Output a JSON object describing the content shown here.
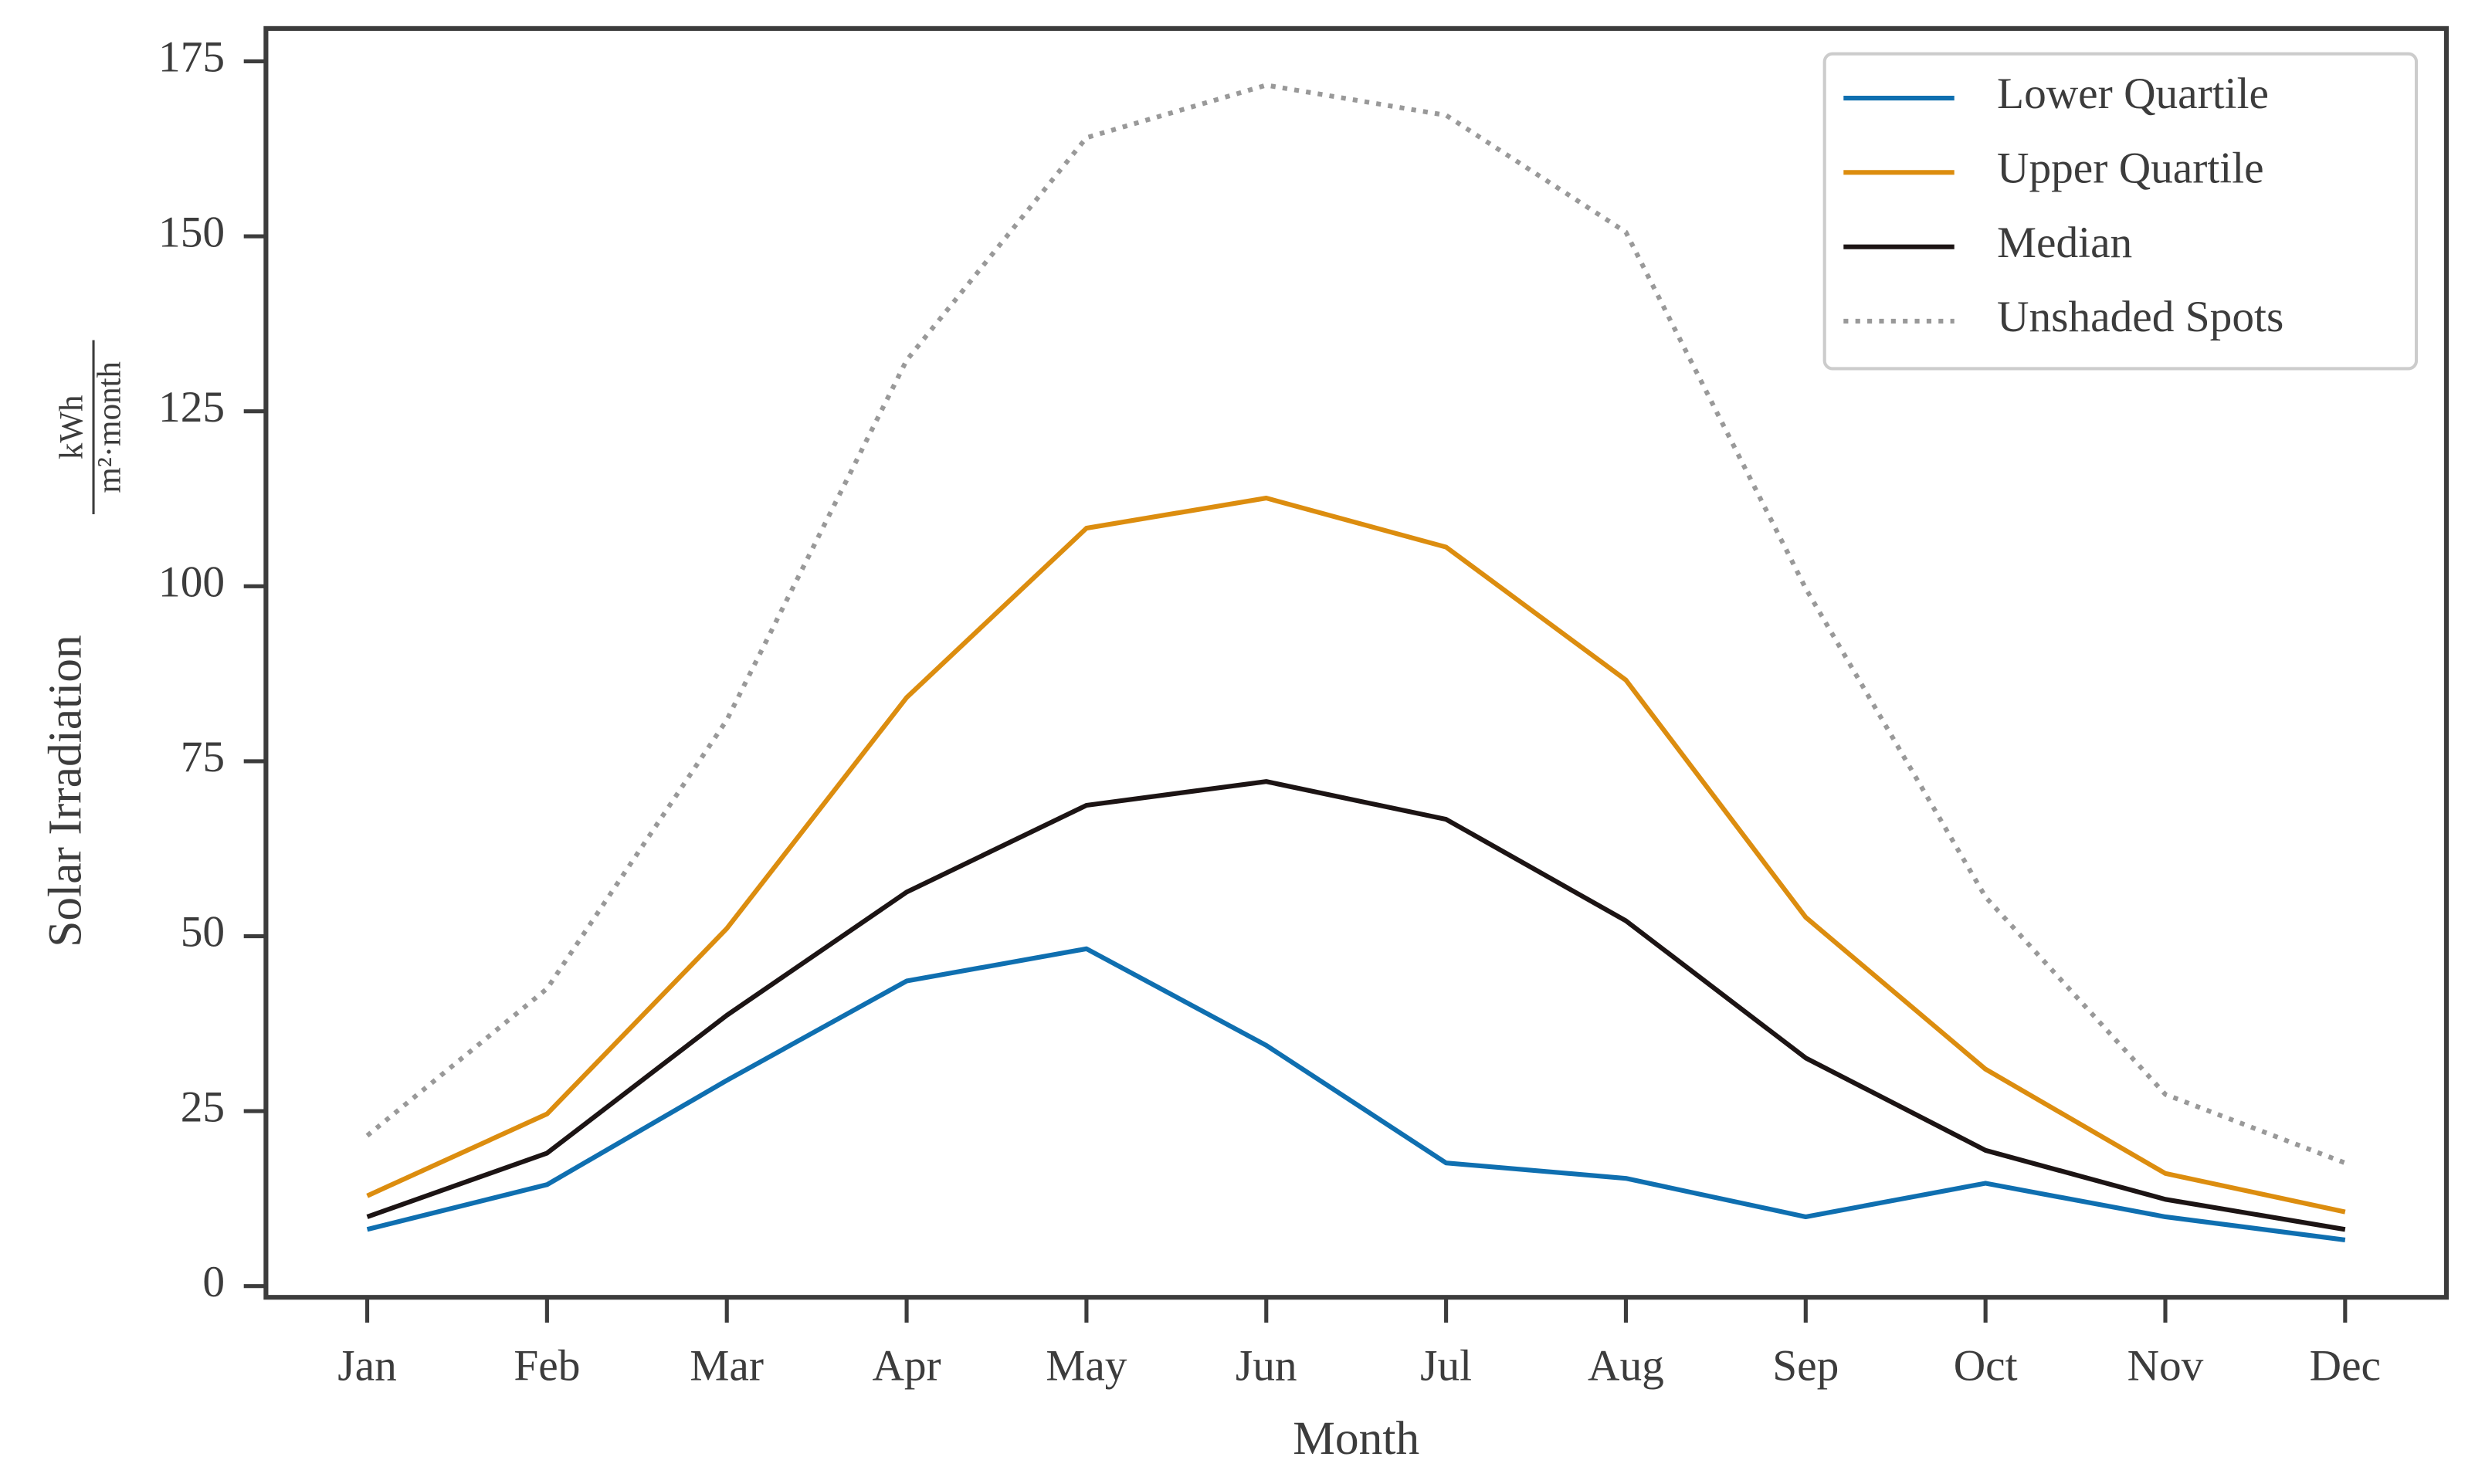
{
  "chart_data": {
    "type": "line",
    "xlabel": "Month",
    "ylabel": {
      "text": "Solar Irradiation",
      "unit_numerator": "kWh",
      "unit_denominator": "m²·month"
    },
    "categories": [
      "Jan",
      "Feb",
      "Mar",
      "Apr",
      "May",
      "Jun",
      "Jul",
      "Aug",
      "Sep",
      "Oct",
      "Nov",
      "Dec"
    ],
    "series": [
      {
        "name": "Lower Quartile",
        "color": "#0f6fb0",
        "style": "solid",
        "values": [
          8.1,
          14.5,
          29.4,
          43.6,
          48.2,
          34.4,
          17.6,
          15.4,
          9.9,
          14.7,
          9.9,
          6.6
        ]
      },
      {
        "name": "Upper Quartile",
        "color": "#dc8d0f",
        "style": "solid",
        "values": [
          12.9,
          24.6,
          51.1,
          84.1,
          108.3,
          112.6,
          105.6,
          86.6,
          52.7,
          31.0,
          16.1,
          10.6
        ]
      },
      {
        "name": "Median",
        "color": "#1c1414",
        "style": "solid",
        "values": [
          9.9,
          19.0,
          38.7,
          56.3,
          68.7,
          72.1,
          66.7,
          52.2,
          32.6,
          19.4,
          12.4,
          8.1
        ]
      },
      {
        "name": "Unshaded Spots",
        "color": "#999999",
        "style": "dotted",
        "values": [
          21.5,
          42.5,
          80.9,
          132.3,
          164.1,
          171.6,
          167.3,
          150.6,
          99.7,
          55.6,
          27.4,
          17.6
        ]
      }
    ],
    "ylim": [
      -1.6,
      179.7
    ],
    "yticks": [
      0,
      25,
      50,
      75,
      100,
      125,
      150,
      175
    ],
    "grid": false,
    "legend": "upper-right"
  }
}
